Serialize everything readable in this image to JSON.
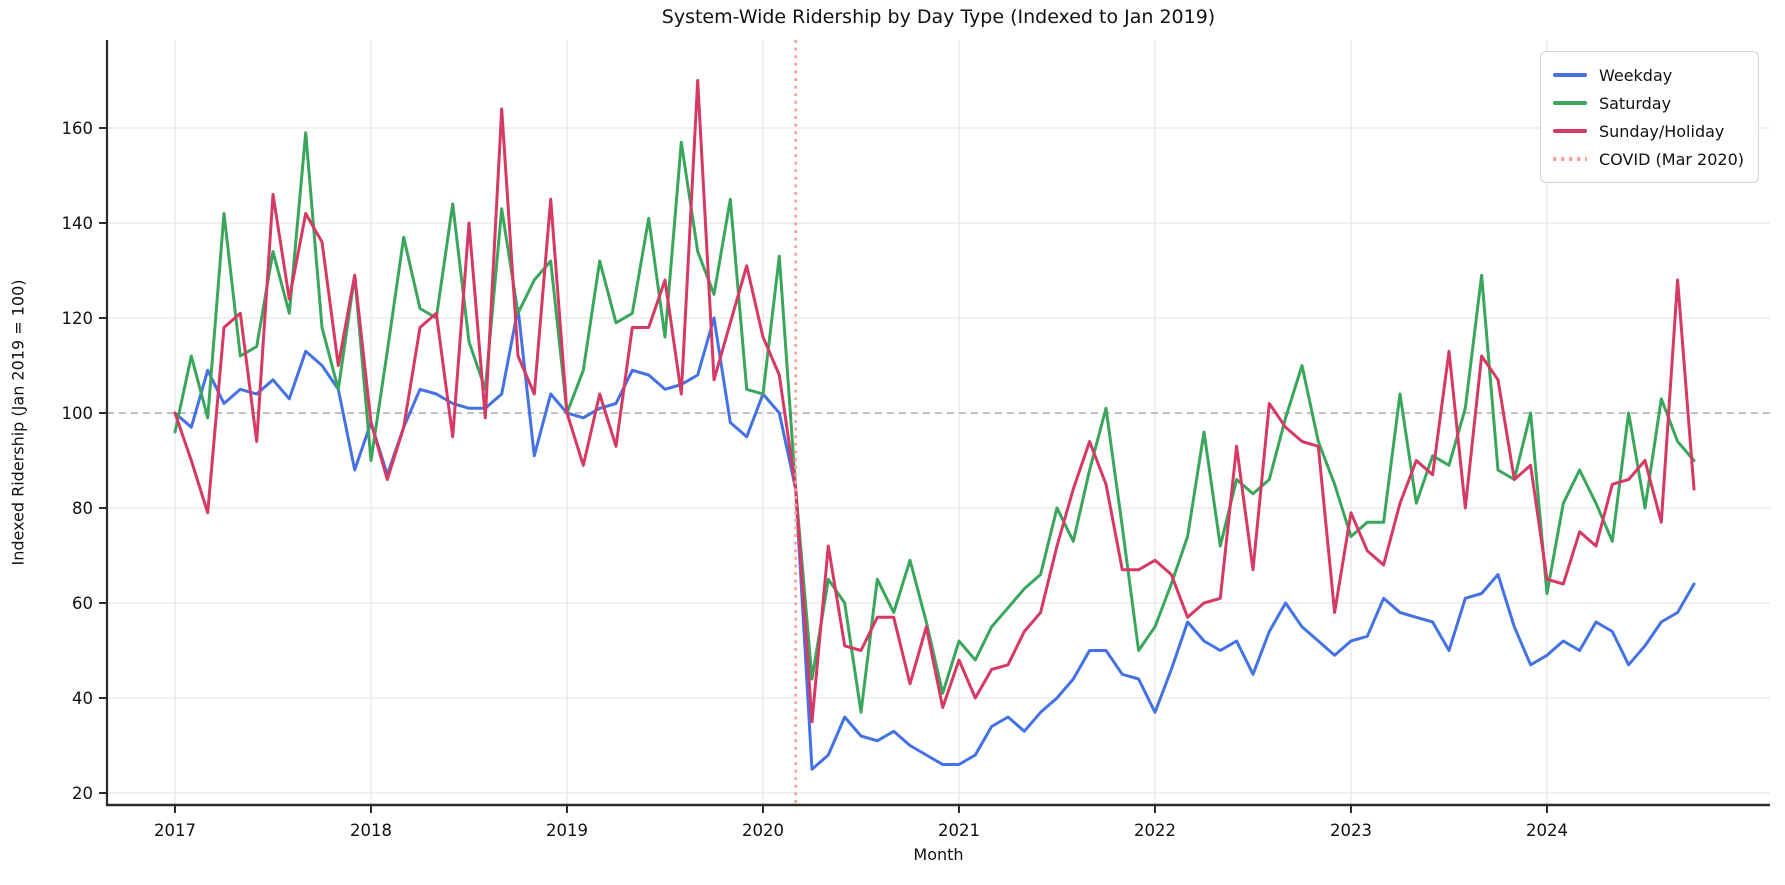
{
  "figure": {
    "background": "#ffffff"
  },
  "chart_data": {
    "type": "line",
    "title": "System-Wide Ridership by Day Type (Indexed to Jan 2019)",
    "xlabel": "Month",
    "ylabel": "Indexed Ridership (Jan 2019 = 100)",
    "x_tick_labels": [
      "2017",
      "2018",
      "2019",
      "2020",
      "2021",
      "2022",
      "2023",
      "2024"
    ],
    "x_tick_month_index": [
      0,
      12,
      24,
      36,
      48,
      60,
      72,
      84
    ],
    "y_ticks": [
      20,
      40,
      60,
      80,
      100,
      120,
      140,
      160
    ],
    "ylim": [
      17.5,
      178.5
    ],
    "grid": true,
    "legend_position": "upper right",
    "baseline": {
      "value": 100,
      "style": "dashed",
      "color": "#ababab"
    },
    "colors": {
      "weekday": "#4472e5",
      "saturday": "#3aa65c",
      "sunday_holiday": "#d63964",
      "covid_line": "#f7a49b",
      "gridline": "#e7e7e7",
      "spine": "#2b2b2b",
      "text": "#111111"
    },
    "months": [
      "2017-01",
      "2017-02",
      "2017-03",
      "2017-04",
      "2017-05",
      "2017-06",
      "2017-07",
      "2017-08",
      "2017-09",
      "2017-10",
      "2017-11",
      "2017-12",
      "2018-01",
      "2018-02",
      "2018-03",
      "2018-04",
      "2018-05",
      "2018-06",
      "2018-07",
      "2018-08",
      "2018-09",
      "2018-10",
      "2018-11",
      "2018-12",
      "2019-01",
      "2019-02",
      "2019-03",
      "2019-04",
      "2019-05",
      "2019-06",
      "2019-07",
      "2019-08",
      "2019-09",
      "2019-10",
      "2019-11",
      "2019-12",
      "2020-01",
      "2020-02",
      "2020-03",
      "2020-04",
      "2020-05",
      "2020-06",
      "2020-07",
      "2020-08",
      "2020-09",
      "2020-10",
      "2020-11",
      "2020-12",
      "2021-01",
      "2021-02",
      "2021-03",
      "2021-04",
      "2021-05",
      "2021-06",
      "2021-07",
      "2021-08",
      "2021-09",
      "2021-10",
      "2021-11",
      "2021-12",
      "2022-01",
      "2022-02",
      "2022-03",
      "2022-04",
      "2022-05",
      "2022-06",
      "2022-07",
      "2022-08",
      "2022-09",
      "2022-10",
      "2022-11",
      "2022-12",
      "2023-01",
      "2023-02",
      "2023-03",
      "2023-04",
      "2023-05",
      "2023-06",
      "2023-07",
      "2023-08",
      "2023-09",
      "2023-10",
      "2023-11",
      "2023-12",
      "2024-01",
      "2024-02",
      "2024-03",
      "2024-04",
      "2024-05",
      "2024-06",
      "2024-07",
      "2024-08",
      "2024-09",
      "2024-10"
    ],
    "series": [
      {
        "name": "Weekday",
        "color": "#4472e5",
        "values": [
          100,
          97,
          109,
          102,
          105,
          104,
          107,
          103,
          113,
          110,
          105,
          88,
          98,
          87,
          97,
          105,
          104,
          102,
          101,
          101,
          104,
          122,
          91,
          104,
          100,
          99,
          101,
          102,
          109,
          108,
          105,
          106,
          108,
          120,
          98,
          95,
          104,
          100,
          84,
          25,
          28,
          36,
          32,
          31,
          33,
          30,
          28,
          26,
          26,
          28,
          34,
          36,
          33,
          37,
          40,
          44,
          50,
          50,
          45,
          44,
          37,
          46,
          56,
          52,
          50,
          52,
          45,
          54,
          60,
          55,
          52,
          49,
          52,
          53,
          61,
          58,
          57,
          56,
          50,
          61,
          62,
          66,
          55,
          47,
          49,
          52,
          50,
          56,
          54,
          47,
          51,
          56,
          58,
          64
        ]
      },
      {
        "name": "Saturday",
        "color": "#3aa65c",
        "values": [
          96,
          112,
          99,
          142,
          112,
          114,
          134,
          121,
          159,
          118,
          105,
          129,
          90,
          113,
          137,
          122,
          120,
          144,
          115,
          105,
          143,
          121,
          128,
          132,
          100,
          109,
          132,
          119,
          121,
          141,
          116,
          157,
          134,
          125,
          145,
          105,
          104,
          133,
          84,
          44,
          65,
          60,
          37,
          65,
          58,
          69,
          56,
          41,
          52,
          48,
          55,
          59,
          63,
          66,
          80,
          73,
          88,
          101,
          76,
          50,
          55,
          64,
          74,
          96,
          72,
          86,
          83,
          86,
          99,
          110,
          94,
          85,
          74,
          77,
          77,
          104,
          81,
          91,
          89,
          101,
          129,
          88,
          86,
          100,
          62,
          81,
          88,
          81,
          73,
          100,
          80,
          103,
          94,
          90
        ]
      },
      {
        "name": "Sunday/Holiday",
        "color": "#d63964",
        "values": [
          100,
          90,
          79,
          118,
          121,
          94,
          146,
          124,
          142,
          136,
          110,
          129,
          98,
          86,
          97,
          118,
          121,
          95,
          140,
          99,
          164,
          112,
          104,
          145,
          100,
          89,
          104,
          93,
          118,
          118,
          128,
          104,
          170,
          107,
          119,
          131,
          116,
          108,
          84,
          35,
          72,
          51,
          50,
          57,
          57,
          43,
          55,
          38,
          48,
          40,
          46,
          47,
          54,
          58,
          72,
          84,
          94,
          85,
          67,
          67,
          69,
          66,
          57,
          60,
          61,
          93,
          67,
          102,
          97,
          94,
          93,
          58,
          79,
          71,
          68,
          81,
          90,
          87,
          113,
          80,
          112,
          107,
          86,
          89,
          65,
          64,
          75,
          72,
          85,
          86,
          90,
          77,
          128,
          84
        ]
      }
    ],
    "annotations": [
      {
        "type": "vline",
        "label": "COVID (Mar 2020)",
        "month": "2020-03",
        "month_index": 38,
        "color": "#f7a49b",
        "style": "dotted"
      }
    ],
    "legend_items": [
      {
        "key": "weekday",
        "label": "Weekday",
        "swatch": "solid"
      },
      {
        "key": "saturday",
        "label": "Saturday",
        "swatch": "solid"
      },
      {
        "key": "sunday",
        "label": "Sunday/Holiday",
        "swatch": "solid"
      },
      {
        "key": "covid",
        "label": "COVID (Mar 2020)",
        "swatch": "dotted"
      }
    ]
  }
}
